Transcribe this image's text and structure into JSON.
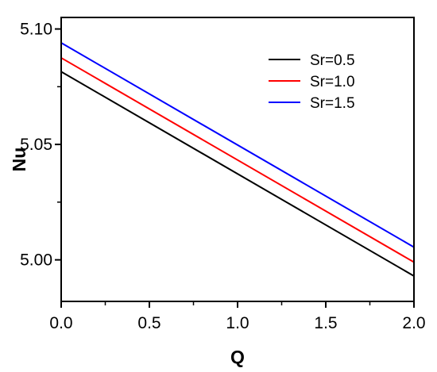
{
  "chart_data": {
    "type": "line",
    "xlabel": "Q",
    "ylabel": "Nu",
    "xlim": [
      0.0,
      2.0
    ],
    "ylim": [
      4.982,
      5.105
    ],
    "x_ticks": [
      0.0,
      0.5,
      1.0,
      1.5,
      2.0
    ],
    "x_tick_labels": [
      "0.0",
      "0.5",
      "1.0",
      "1.5",
      "2.0"
    ],
    "y_ticks": [
      5.0,
      5.05,
      5.1
    ],
    "y_tick_labels": [
      "5.00",
      "5.05",
      "5.10"
    ],
    "grid": false,
    "legend_position": "top-right",
    "series": [
      {
        "name": "Sr=0.5",
        "color": "#000000",
        "x": [
          0.0,
          2.0
        ],
        "y": [
          5.0815,
          4.993
        ]
      },
      {
        "name": "Sr=1.0",
        "color": "#ff0000",
        "x": [
          0.0,
          2.0
        ],
        "y": [
          5.0875,
          4.999
        ]
      },
      {
        "name": "Sr=1.5",
        "color": "#0000ff",
        "x": [
          0.0,
          2.0
        ],
        "y": [
          5.094,
          5.0055
        ]
      }
    ]
  }
}
